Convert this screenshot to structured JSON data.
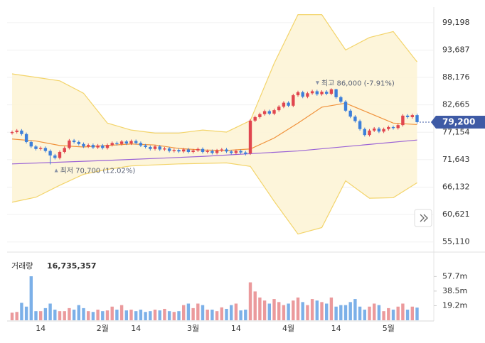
{
  "chart_data": {
    "type": "candlestick",
    "categories": [
      null,
      null,
      null,
      null,
      null,
      null,
      "14",
      null,
      null,
      null,
      null,
      null,
      null,
      null,
      null,
      null,
      null,
      null,
      null,
      "2월",
      null,
      null,
      null,
      null,
      null,
      null,
      "14",
      null,
      null,
      null,
      null,
      null,
      null,
      null,
      null,
      null,
      null,
      null,
      "3월",
      null,
      null,
      null,
      null,
      null,
      null,
      null,
      null,
      "14",
      null,
      null,
      null,
      null,
      null,
      null,
      null,
      null,
      null,
      null,
      "4월",
      null,
      null,
      null,
      null,
      null,
      null,
      null,
      null,
      null,
      "14",
      null,
      null,
      null,
      null,
      null,
      null,
      null,
      null,
      null,
      null,
      "5월",
      null,
      null,
      null,
      null,
      null,
      null
    ],
    "open": [
      77000,
      77200,
      77500,
      76800,
      75200,
      74300,
      73800,
      74000,
      73400,
      72500,
      72000,
      73200,
      74000,
      75500,
      75200,
      74800,
      74300,
      74600,
      74100,
      74500,
      74000,
      74600,
      75000,
      74800,
      75300,
      74900,
      75400,
      75000,
      74500,
      74200,
      73800,
      74300,
      73700,
      73900,
      73400,
      73600,
      73300,
      73700,
      73200,
      73500,
      73800,
      73200,
      73400,
      73000,
      73500,
      73700,
      73300,
      73000,
      73400,
      73100,
      72900,
      79500,
      80200,
      80800,
      81400,
      80900,
      81600,
      82300,
      83100,
      82500,
      84600,
      85200,
      84300,
      85000,
      85400,
      84800,
      85300,
      84900,
      85800,
      84200,
      83300,
      81500,
      80300,
      79400,
      77800,
      76600,
      77500,
      77900,
      77300,
      77800,
      78200,
      78000,
      78600,
      80500,
      80200,
      80600
    ],
    "high": [
      77500,
      77800,
      77800,
      77100,
      75500,
      74600,
      74300,
      74300,
      73700,
      72800,
      73500,
      74300,
      75800,
      75800,
      75500,
      75100,
      74900,
      74900,
      74800,
      74800,
      74900,
      75300,
      75300,
      75600,
      75600,
      75700,
      75700,
      75300,
      74800,
      74500,
      74600,
      74600,
      74200,
      74200,
      73900,
      73900,
      74000,
      74000,
      73800,
      74100,
      74100,
      73700,
      73700,
      73800,
      74000,
      74000,
      73600,
      73700,
      73700,
      73400,
      79800,
      80500,
      81100,
      81700,
      81700,
      81900,
      82600,
      83400,
      83400,
      84900,
      85500,
      85500,
      85300,
      85700,
      85700,
      85600,
      85600,
      86000,
      85900,
      84500,
      83600,
      81800,
      80600,
      79700,
      78100,
      77800,
      78200,
      78200,
      78100,
      78500,
      78500,
      78900,
      80800,
      80800,
      80900,
      80900
    ],
    "low": [
      76700,
      76900,
      76500,
      74900,
      74000,
      73500,
      73500,
      73100,
      70700,
      71700,
      71700,
      72900,
      73700,
      74900,
      74500,
      74000,
      74000,
      73800,
      73800,
      73700,
      73700,
      74300,
      74500,
      74500,
      74600,
      74600,
      74700,
      74200,
      73900,
      73500,
      73500,
      73400,
      73400,
      73100,
      73100,
      73000,
      73000,
      72900,
      72900,
      73200,
      72900,
      72900,
      72700,
      72700,
      73200,
      73000,
      72700,
      72700,
      72800,
      72500,
      72600,
      79200,
      79900,
      80500,
      80600,
      80600,
      81300,
      82000,
      82200,
      82200,
      84300,
      84000,
      84000,
      84700,
      84500,
      84500,
      84600,
      84600,
      83900,
      83000,
      81200,
      80000,
      79100,
      77500,
      76300,
      76300,
      77200,
      77000,
      77000,
      77500,
      77700,
      77700,
      78300,
      79900,
      79900,
      78900
    ],
    "close": [
      77200,
      77500,
      76800,
      75200,
      74300,
      73800,
      74000,
      73400,
      72500,
      72000,
      73200,
      74000,
      75500,
      75200,
      74800,
      74300,
      74600,
      74100,
      74500,
      74000,
      74600,
      75000,
      74800,
      75300,
      74900,
      75400,
      75000,
      74500,
      74200,
      73800,
      74300,
      73700,
      73900,
      73400,
      73600,
      73300,
      73700,
      73200,
      73500,
      73800,
      73200,
      73400,
      73000,
      73500,
      73700,
      73300,
      73000,
      73400,
      73100,
      72800,
      79500,
      80200,
      80800,
      81400,
      80900,
      81600,
      82300,
      83100,
      82500,
      84600,
      85200,
      84300,
      85000,
      85400,
      84800,
      85300,
      84900,
      85800,
      84200,
      83300,
      81500,
      80300,
      79400,
      77800,
      76600,
      77500,
      77900,
      77300,
      77800,
      78200,
      78000,
      78600,
      80500,
      80200,
      80600,
      79200
    ],
    "up_color": "#e0464f",
    "down_color": "#3d7fd9",
    "ylim": [
      54500,
      101600
    ],
    "yticks": [
      {
        "value": 99198,
        "label": "99,198"
      },
      {
        "value": 93687,
        "label": "93,687"
      },
      {
        "value": 88176,
        "label": "88,176"
      },
      {
        "value": 82665,
        "label": "82,665"
      },
      {
        "value": 77154,
        "label": "77,154"
      },
      {
        "value": 71643,
        "label": "71,643"
      },
      {
        "value": 66132,
        "label": "66,132"
      },
      {
        "value": 60621,
        "label": "60,621"
      },
      {
        "value": 55110,
        "label": "55,110"
      }
    ],
    "grid": true,
    "band": {
      "color": "#f3d46a",
      "x": [
        0,
        5,
        10,
        15,
        20,
        25,
        30,
        35,
        40,
        45,
        50,
        55,
        60,
        65,
        70,
        75,
        80,
        85
      ],
      "upper": [
        88900,
        88200,
        87500,
        85000,
        79000,
        77600,
        77000,
        77000,
        77600,
        77200,
        79500,
        91000,
        100800,
        100800,
        93700,
        96200,
        97400,
        91300
      ],
      "lower": [
        63100,
        64100,
        66500,
        68700,
        69700,
        70400,
        70600,
        70800,
        70900,
        71000,
        70300,
        63300,
        56700,
        58000,
        67400,
        63900,
        64000,
        67000
      ]
    },
    "overlays": [
      {
        "color": "#f0913a",
        "x": [
          0,
          5,
          10,
          15,
          20,
          25,
          30,
          35,
          40,
          45,
          50,
          55,
          60,
          65,
          70,
          75,
          80,
          85
        ],
        "values": [
          75800,
          75400,
          74500,
          74200,
          74500,
          74800,
          74600,
          73900,
          73600,
          73500,
          73800,
          76000,
          79000,
          82200,
          83000,
          81000,
          79000,
          78700
        ]
      },
      {
        "color": "#9a62d6",
        "x": [
          0,
          20,
          40,
          60,
          85
        ],
        "values": [
          70800,
          71500,
          72300,
          73400,
          75600
        ]
      }
    ],
    "annotations": [
      {
        "text": "최고 86,000 (-7.91%)",
        "index": 67,
        "value": 86000,
        "dir": "down"
      },
      {
        "text": "최저 70,700 (12.02%)",
        "index": 8,
        "value": 70700,
        "dir": "up"
      }
    ],
    "current_price_label": "79,200",
    "volume": {
      "label": "거래량",
      "total_label": "16,735,357",
      "values": [
        10,
        11,
        23,
        18,
        58,
        12,
        12,
        16,
        22,
        14,
        12,
        12,
        16,
        14,
        20,
        16,
        12,
        11,
        14,
        12,
        13,
        18,
        14,
        20,
        13,
        14,
        12,
        14,
        11,
        12,
        14,
        13,
        15,
        12,
        11,
        12,
        20,
        22,
        16,
        22,
        20,
        14,
        14,
        12,
        17,
        15,
        20,
        22,
        13,
        14,
        50,
        38,
        30,
        26,
        22,
        28,
        24,
        20,
        22,
        26,
        30,
        24,
        20,
        28,
        26,
        24,
        22,
        30,
        18,
        20,
        20,
        24,
        28,
        18,
        14,
        18,
        22,
        20,
        12,
        16,
        14,
        18,
        22,
        14,
        18,
        16.7
      ],
      "ylim": [
        0,
        80.5
      ],
      "yticks": [
        {
          "value": 57.7,
          "label": "57.7m"
        },
        {
          "value": 38.5,
          "label": "38.5m"
        },
        {
          "value": 19.2,
          "label": "19.2m"
        }
      ],
      "up_color": "#eb9a9c",
      "down_color": "#7cb0e8"
    }
  }
}
